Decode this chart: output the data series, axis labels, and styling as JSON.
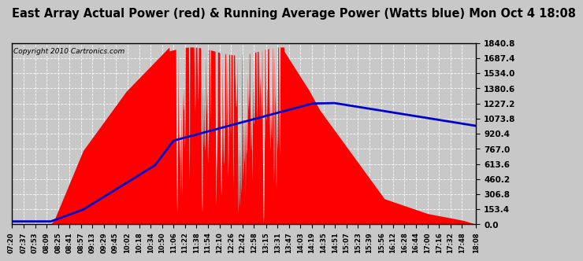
{
  "title": "East Array Actual Power (red) & Running Average Power (Watts blue) Mon Oct 4 18:08",
  "copyright": "Copyright 2010 Cartronics.com",
  "ylabel_values": [
    0.0,
    153.4,
    306.8,
    460.2,
    613.6,
    767.0,
    920.4,
    1073.8,
    1227.2,
    1380.6,
    1534.0,
    1687.4,
    1840.8
  ],
  "ymax": 1840.8,
  "ymin": 0.0,
  "background_color": "#c8c8c8",
  "plot_bg_color": "#c8c8c8",
  "grid_color": "#ffffff",
  "red_color": "#ff0000",
  "blue_color": "#0000cc",
  "title_fontsize": 11,
  "x_tick_labels": [
    "07:20",
    "07:37",
    "07:53",
    "08:09",
    "08:25",
    "08:41",
    "08:57",
    "09:13",
    "09:29",
    "09:45",
    "10:02",
    "10:18",
    "10:34",
    "10:50",
    "11:06",
    "11:22",
    "11:38",
    "11:54",
    "12:10",
    "12:26",
    "12:42",
    "12:58",
    "13:15",
    "13:31",
    "13:47",
    "14:03",
    "14:19",
    "14:35",
    "14:51",
    "15:07",
    "15:23",
    "15:39",
    "15:56",
    "16:12",
    "16:28",
    "16:44",
    "17:00",
    "17:16",
    "17:32",
    "17:48",
    "18:08"
  ]
}
